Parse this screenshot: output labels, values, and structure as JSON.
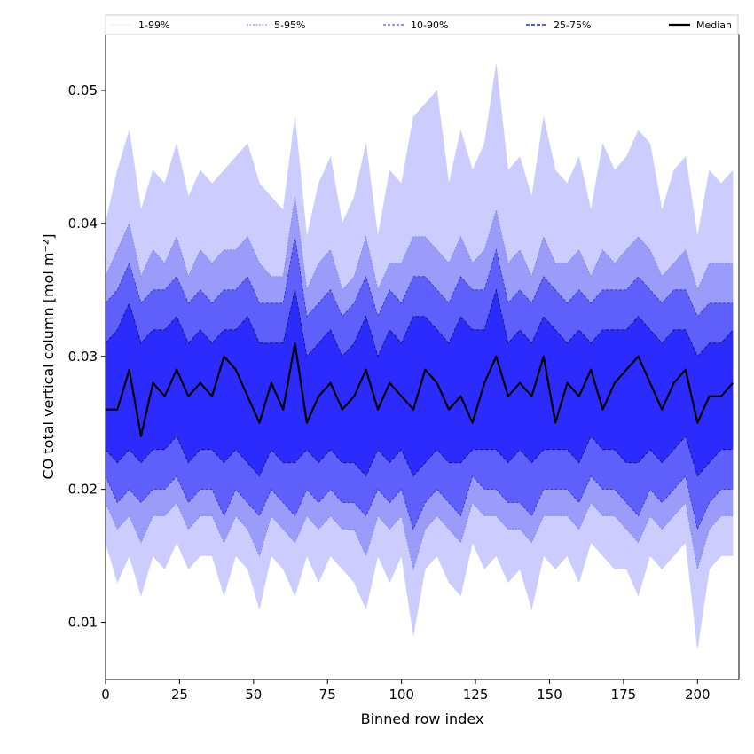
{
  "chart_data": {
    "type": "area",
    "title": "",
    "xlabel": "Binned row index",
    "ylabel": "CO total vertical column [mol m⁻²]",
    "xlim": [
      0,
      214
    ],
    "ylim": [
      0.0057,
      0.0542
    ],
    "xticks": [
      0,
      25,
      50,
      75,
      100,
      125,
      150,
      175,
      200
    ],
    "yticks": [
      0.01,
      0.02,
      0.03,
      0.04,
      0.05
    ],
    "ytick_labels": [
      "0.01",
      "0.02",
      "0.03",
      "0.04",
      "0.05"
    ],
    "legend_position": "top (above plot, horizontal)",
    "x_start": 0,
    "x_step": 4,
    "bands": [
      {
        "name": "1-99%",
        "color": "#ccccff",
        "line": "#c8c8f5",
        "lower": [
          0.016,
          0.013,
          0.015,
          0.012,
          0.015,
          0.014,
          0.016,
          0.014,
          0.015,
          0.015,
          0.012,
          0.015,
          0.014,
          0.011,
          0.015,
          0.014,
          0.012,
          0.015,
          0.013,
          0.015,
          0.014,
          0.013,
          0.011,
          0.015,
          0.013,
          0.015,
          0.009,
          0.014,
          0.015,
          0.013,
          0.012,
          0.016,
          0.014,
          0.015,
          0.013,
          0.014,
          0.011,
          0.015,
          0.014,
          0.015,
          0.013,
          0.016,
          0.015,
          0.014,
          0.014,
          0.012,
          0.015,
          0.014,
          0.015,
          0.016,
          0.008,
          0.014,
          0.015,
          0.015
        ],
        "upper": [
          0.04,
          0.044,
          0.047,
          0.041,
          0.044,
          0.043,
          0.046,
          0.042,
          0.044,
          0.043,
          0.044,
          0.045,
          0.046,
          0.043,
          0.042,
          0.041,
          0.048,
          0.039,
          0.043,
          0.045,
          0.04,
          0.042,
          0.046,
          0.039,
          0.044,
          0.043,
          0.048,
          0.049,
          0.05,
          0.043,
          0.047,
          0.044,
          0.046,
          0.052,
          0.044,
          0.045,
          0.042,
          0.048,
          0.044,
          0.043,
          0.045,
          0.041,
          0.046,
          0.044,
          0.045,
          0.047,
          0.046,
          0.041,
          0.044,
          0.045,
          0.039,
          0.044,
          0.043,
          0.044
        ]
      },
      {
        "name": "5-95%",
        "color": "#9b9bfa",
        "line": "#8080e0",
        "lower": [
          0.019,
          0.017,
          0.018,
          0.016,
          0.018,
          0.018,
          0.019,
          0.017,
          0.018,
          0.018,
          0.016,
          0.018,
          0.017,
          0.015,
          0.018,
          0.017,
          0.016,
          0.018,
          0.017,
          0.018,
          0.017,
          0.017,
          0.015,
          0.018,
          0.017,
          0.018,
          0.014,
          0.017,
          0.018,
          0.017,
          0.016,
          0.019,
          0.018,
          0.018,
          0.017,
          0.017,
          0.016,
          0.018,
          0.018,
          0.018,
          0.017,
          0.019,
          0.018,
          0.018,
          0.017,
          0.016,
          0.018,
          0.017,
          0.018,
          0.019,
          0.014,
          0.017,
          0.018,
          0.018
        ],
        "upper": [
          0.036,
          0.038,
          0.04,
          0.036,
          0.038,
          0.037,
          0.039,
          0.036,
          0.038,
          0.037,
          0.038,
          0.038,
          0.039,
          0.037,
          0.036,
          0.036,
          0.042,
          0.035,
          0.037,
          0.038,
          0.035,
          0.036,
          0.039,
          0.035,
          0.037,
          0.037,
          0.039,
          0.039,
          0.038,
          0.037,
          0.039,
          0.037,
          0.038,
          0.041,
          0.037,
          0.038,
          0.036,
          0.039,
          0.037,
          0.037,
          0.038,
          0.036,
          0.038,
          0.037,
          0.038,
          0.039,
          0.038,
          0.036,
          0.037,
          0.038,
          0.035,
          0.037,
          0.037,
          0.037
        ]
      },
      {
        "name": "10-90%",
        "color": "#5f5ffc",
        "line": "#3030b0",
        "lower": [
          0.021,
          0.019,
          0.02,
          0.019,
          0.02,
          0.02,
          0.021,
          0.019,
          0.02,
          0.02,
          0.018,
          0.02,
          0.019,
          0.018,
          0.02,
          0.019,
          0.018,
          0.02,
          0.019,
          0.02,
          0.019,
          0.019,
          0.018,
          0.02,
          0.019,
          0.02,
          0.017,
          0.019,
          0.02,
          0.019,
          0.018,
          0.021,
          0.02,
          0.02,
          0.019,
          0.019,
          0.018,
          0.02,
          0.02,
          0.02,
          0.019,
          0.021,
          0.02,
          0.02,
          0.019,
          0.018,
          0.02,
          0.019,
          0.02,
          0.021,
          0.017,
          0.019,
          0.02,
          0.02
        ],
        "upper": [
          0.034,
          0.035,
          0.037,
          0.034,
          0.035,
          0.035,
          0.036,
          0.034,
          0.035,
          0.034,
          0.035,
          0.035,
          0.036,
          0.034,
          0.034,
          0.034,
          0.039,
          0.033,
          0.034,
          0.035,
          0.033,
          0.034,
          0.036,
          0.033,
          0.035,
          0.034,
          0.036,
          0.036,
          0.035,
          0.034,
          0.036,
          0.035,
          0.035,
          0.038,
          0.034,
          0.035,
          0.034,
          0.036,
          0.035,
          0.034,
          0.035,
          0.034,
          0.035,
          0.035,
          0.035,
          0.036,
          0.035,
          0.034,
          0.035,
          0.035,
          0.033,
          0.034,
          0.034,
          0.034
        ]
      },
      {
        "name": "25-75%",
        "color": "#2b2bfd",
        "line": "#101060",
        "lower": [
          0.023,
          0.022,
          0.023,
          0.022,
          0.023,
          0.023,
          0.024,
          0.022,
          0.023,
          0.023,
          0.022,
          0.023,
          0.022,
          0.021,
          0.023,
          0.022,
          0.022,
          0.023,
          0.022,
          0.023,
          0.022,
          0.022,
          0.021,
          0.023,
          0.022,
          0.023,
          0.021,
          0.022,
          0.023,
          0.022,
          0.022,
          0.023,
          0.023,
          0.023,
          0.022,
          0.023,
          0.022,
          0.023,
          0.023,
          0.023,
          0.022,
          0.024,
          0.023,
          0.023,
          0.022,
          0.022,
          0.023,
          0.022,
          0.023,
          0.024,
          0.021,
          0.022,
          0.023,
          0.023
        ],
        "upper": [
          0.031,
          0.032,
          0.034,
          0.031,
          0.032,
          0.032,
          0.033,
          0.031,
          0.032,
          0.031,
          0.032,
          0.032,
          0.033,
          0.031,
          0.031,
          0.031,
          0.035,
          0.03,
          0.031,
          0.032,
          0.03,
          0.031,
          0.033,
          0.03,
          0.032,
          0.031,
          0.033,
          0.033,
          0.032,
          0.031,
          0.033,
          0.032,
          0.032,
          0.035,
          0.031,
          0.032,
          0.031,
          0.033,
          0.032,
          0.031,
          0.032,
          0.031,
          0.032,
          0.032,
          0.032,
          0.033,
          0.032,
          0.031,
          0.032,
          0.032,
          0.03,
          0.031,
          0.031,
          0.032
        ]
      }
    ],
    "median": {
      "name": "Median",
      "color": "#000000",
      "values": [
        0.026,
        0.026,
        0.029,
        0.024,
        0.028,
        0.027,
        0.029,
        0.027,
        0.028,
        0.027,
        0.03,
        0.029,
        0.027,
        0.025,
        0.028,
        0.026,
        0.031,
        0.025,
        0.027,
        0.028,
        0.026,
        0.027,
        0.029,
        0.026,
        0.028,
        0.027,
        0.026,
        0.029,
        0.028,
        0.026,
        0.027,
        0.025,
        0.028,
        0.03,
        0.027,
        0.028,
        0.027,
        0.03,
        0.025,
        0.028,
        0.027,
        0.029,
        0.026,
        0.028,
        0.029,
        0.03,
        0.028,
        0.026,
        0.028,
        0.029,
        0.025,
        0.027,
        0.027,
        0.028
      ]
    }
  }
}
